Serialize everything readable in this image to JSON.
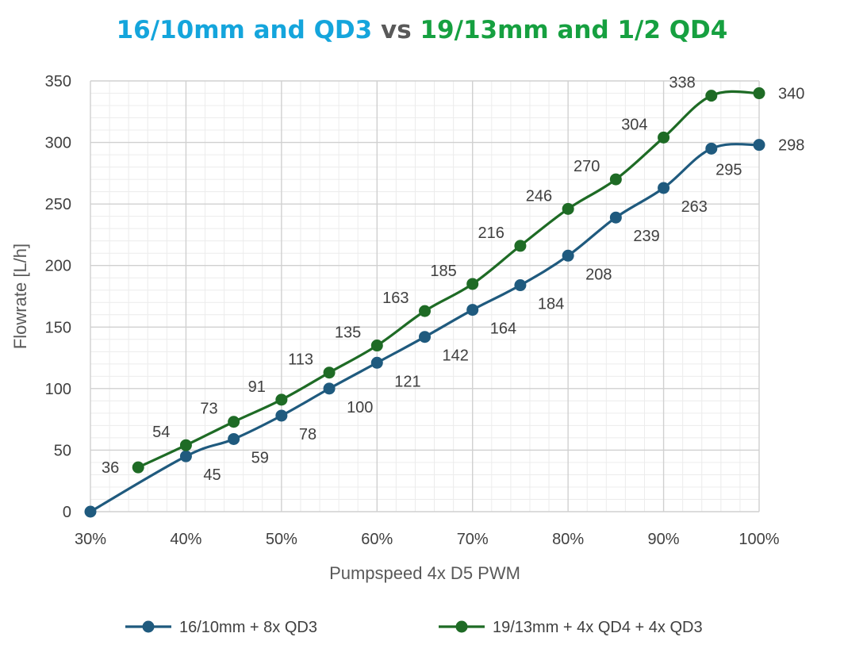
{
  "title": {
    "part1": "16/10mm and QD3",
    "part2": " vs ",
    "part3": "19/13mm and 1/2 QD4",
    "color1": "#14a5dc",
    "color2": "#595959",
    "color3": "#16a040"
  },
  "chart_data": {
    "type": "line",
    "title": "16/10mm and QD3 vs 19/13mm and 1/2 QD4",
    "xlabel": "Pumpspeed 4x D5 PWM",
    "ylabel": "Flowrate [L/h]",
    "xlim": [
      30,
      100
    ],
    "ylim": [
      0,
      350
    ],
    "x_ticks": [
      "30%",
      "40%",
      "50%",
      "60%",
      "70%",
      "80%",
      "90%",
      "100%"
    ],
    "y_ticks": [
      "0",
      "50",
      "100",
      "150",
      "200",
      "250",
      "300",
      "350"
    ],
    "grid": true,
    "legend": "bottom",
    "series": [
      {
        "name": "16/10mm + 8x QD3",
        "color": "#1f5a7e",
        "x": [
          30,
          40,
          45,
          50,
          55,
          60,
          65,
          70,
          75,
          80,
          85,
          90,
          95,
          100
        ],
        "y": [
          0,
          45,
          59,
          78,
          100,
          121,
          142,
          164,
          184,
          208,
          239,
          263,
          295,
          298
        ],
        "labels": [
          "",
          "45",
          "59",
          "78",
          "100",
          "121",
          "142",
          "164",
          "184",
          "208",
          "239",
          "263",
          "295",
          "298"
        ]
      },
      {
        "name": "19/13mm + 4x QD4 + 4x QD3",
        "color": "#1e6b25",
        "x": [
          35,
          40,
          45,
          50,
          55,
          60,
          65,
          70,
          75,
          80,
          85,
          90,
          95,
          100
        ],
        "y": [
          36,
          54,
          73,
          91,
          113,
          135,
          163,
          185,
          216,
          246,
          270,
          304,
          338,
          340
        ],
        "labels": [
          "36",
          "54",
          "73",
          "91",
          "113",
          "135",
          "163",
          "185",
          "216",
          "246",
          "270",
          "304",
          "338",
          "340"
        ]
      }
    ]
  }
}
